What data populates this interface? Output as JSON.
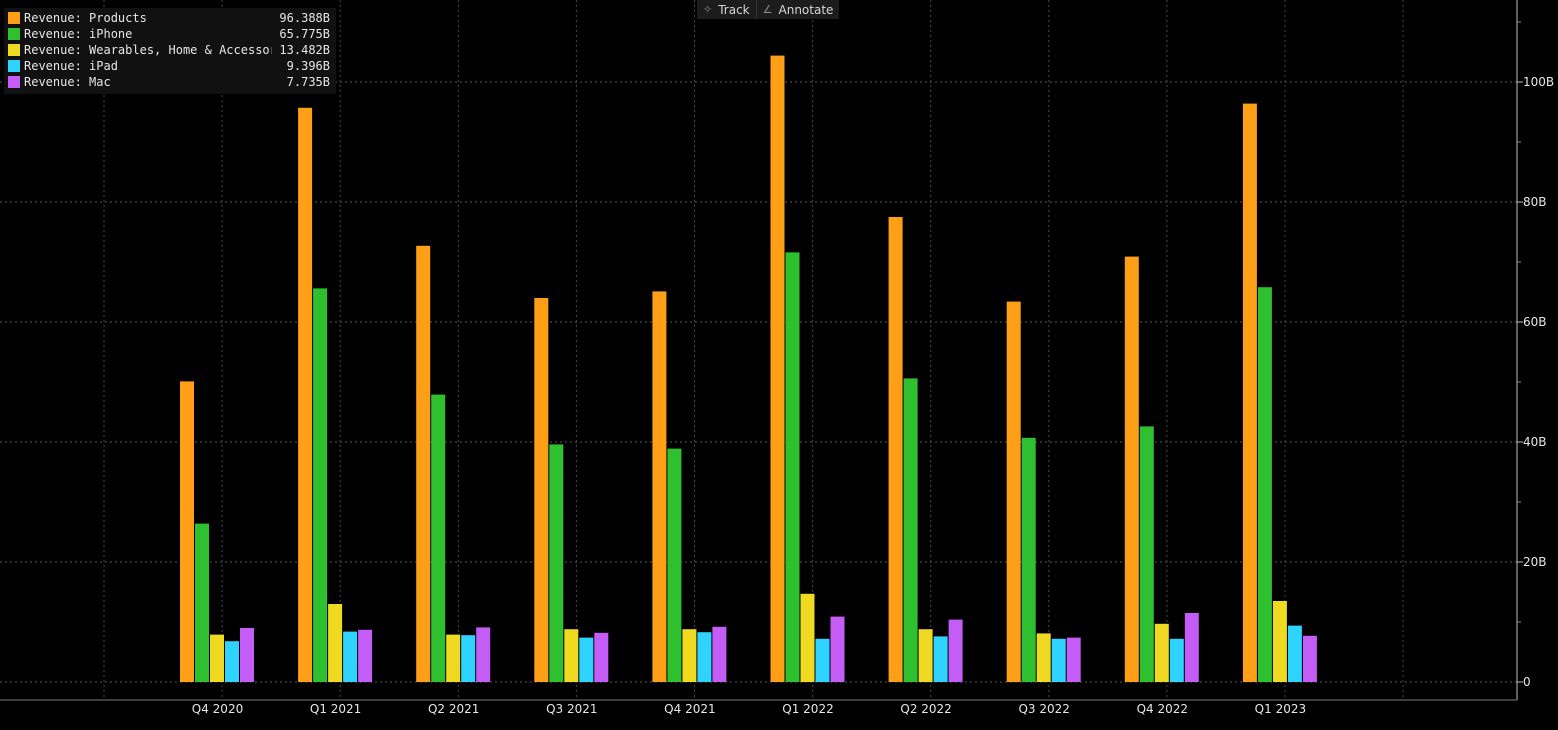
{
  "toolbar": {
    "track_label": "Track",
    "annotate_label": "Annotate",
    "track_icon": "crosshair-icon",
    "annotate_icon": "pencil-icon"
  },
  "chart_data": {
    "type": "bar",
    "categories": [
      "Q4 2020",
      "Q1 2021",
      "Q2 2021",
      "Q3 2021",
      "Q4 2021",
      "Q1 2022",
      "Q2 2022",
      "Q3 2022",
      "Q4 2022",
      "Q1 2023"
    ],
    "series": [
      {
        "name": "Revenue: Products",
        "latest": "96.388B",
        "color": "#FF9E17",
        "values": [
          50.1,
          95.7,
          72.7,
          64.0,
          65.1,
          104.4,
          77.5,
          63.4,
          70.9,
          96.4
        ]
      },
      {
        "name": "Revenue: iPhone",
        "latest": "65.775B",
        "color": "#2EC02E",
        "values": [
          26.4,
          65.6,
          47.9,
          39.6,
          38.9,
          71.6,
          50.6,
          40.7,
          42.6,
          65.8
        ]
      },
      {
        "name": "Revenue: Wearables, Home & Accessories",
        "latest": "13.482B",
        "color": "#EFDA21",
        "values": [
          7.9,
          13.0,
          7.9,
          8.8,
          8.8,
          14.7,
          8.8,
          8.1,
          9.7,
          13.5
        ]
      },
      {
        "name": "Revenue: iPad",
        "latest": "9.396B",
        "color": "#2FD3FF",
        "values": [
          6.8,
          8.4,
          7.8,
          7.4,
          8.3,
          7.2,
          7.6,
          7.2,
          7.2,
          9.4
        ]
      },
      {
        "name": "Revenue: Mac",
        "latest": "7.735B",
        "color": "#C45CF6",
        "values": [
          9.0,
          8.7,
          9.1,
          8.2,
          9.2,
          10.9,
          10.4,
          7.4,
          11.5,
          7.7
        ]
      }
    ],
    "yticks": [
      0,
      20,
      40,
      60,
      80,
      100
    ],
    "ytick_labels": [
      "0",
      "20B",
      "40B",
      "60B",
      "80B",
      "100B"
    ],
    "ylim": [
      0,
      112
    ],
    "grid": true,
    "legend": "top-left",
    "yaxis_side": "right"
  }
}
